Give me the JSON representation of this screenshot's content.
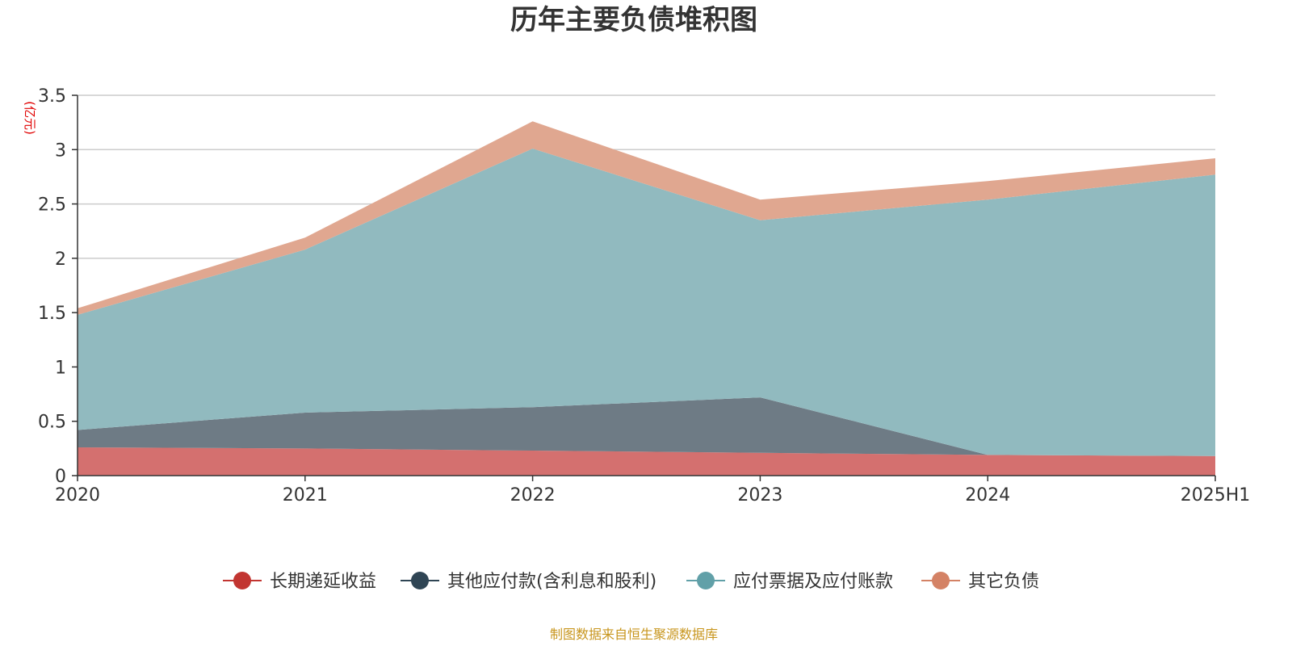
{
  "chart_data": {
    "type": "area",
    "stacked": true,
    "title": "历年主要负债堆积图",
    "unit_label": "(亿元)",
    "source_note": "制图数据来自恒生聚源数据库",
    "categories": [
      "2020",
      "2021",
      "2022",
      "2023",
      "2024",
      "2025H1"
    ],
    "ylim": [
      0,
      3.5
    ],
    "yticks": [
      0,
      0.5,
      1,
      1.5,
      2,
      2.5,
      3,
      3.5
    ],
    "ytick_labels": [
      "0",
      "0.5",
      "1",
      "1.5",
      "2",
      "2.5",
      "3",
      "3.5"
    ],
    "grid": true,
    "legend_position": "bottom",
    "series": [
      {
        "name": "长期递延收益",
        "color": "#c23531",
        "fill": "#d4706f",
        "values": [
          0.26,
          0.25,
          0.23,
          0.21,
          0.19,
          0.18
        ]
      },
      {
        "name": "其他应付款(含利息和股利)",
        "color": "#2f4554",
        "fill": "#6e7b85",
        "values": [
          0.16,
          0.33,
          0.4,
          0.51,
          0.0,
          0.0
        ]
      },
      {
        "name": "应付票据及应付账款",
        "color": "#61a0a8",
        "fill": "#91babf",
        "values": [
          1.06,
          1.5,
          2.38,
          1.63,
          2.35,
          2.59
        ]
      },
      {
        "name": "其它负债",
        "color": "#d48265",
        "fill": "#e0a790",
        "values": [
          0.06,
          0.11,
          0.25,
          0.19,
          0.17,
          0.15
        ]
      }
    ]
  }
}
